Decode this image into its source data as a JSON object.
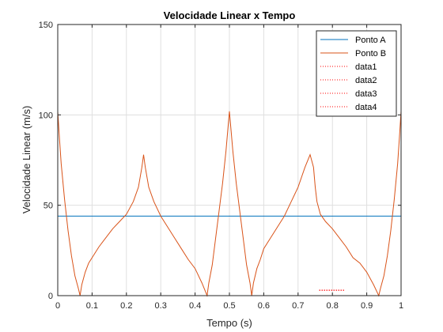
{
  "chart_data": {
    "type": "line",
    "title": "Velocidade Linear x Tempo",
    "xlabel": "Tempo (s)",
    "ylabel": "Velocidade Linear (m/s)",
    "xlim": [
      0,
      1
    ],
    "ylim": [
      0,
      150
    ],
    "xticks": [
      0,
      0.1,
      0.2,
      0.3,
      0.4,
      0.5,
      0.6,
      0.7,
      0.8,
      0.9,
      1
    ],
    "xtick_labels": [
      "0",
      "0.1",
      "0.2",
      "0.3",
      "0.4",
      "0.5",
      "0.6",
      "0.7",
      "0.8",
      "0.9",
      "1"
    ],
    "yticks": [
      0,
      50,
      100,
      150
    ],
    "ytick_labels": [
      "0",
      "50",
      "100",
      "150"
    ],
    "grid": true,
    "legend_position": "top-right",
    "series": [
      {
        "name": "Ponto A",
        "color": "#0072BD",
        "style": "solid",
        "x": [
          0,
          1
        ],
        "y": [
          44,
          44
        ]
      },
      {
        "name": "Ponto B",
        "color": "#D95319",
        "style": "solid",
        "x": [
          0,
          0.005,
          0.01,
          0.02,
          0.03,
          0.04,
          0.05,
          0.06,
          0.065,
          0.07,
          0.08,
          0.09,
          0.1,
          0.12,
          0.14,
          0.16,
          0.18,
          0.2,
          0.22,
          0.235,
          0.245,
          0.25,
          0.255,
          0.265,
          0.28,
          0.3,
          0.32,
          0.34,
          0.36,
          0.38,
          0.4,
          0.42,
          0.435,
          0.44,
          0.45,
          0.46,
          0.47,
          0.48,
          0.49,
          0.495,
          0.5,
          0.505,
          0.51,
          0.52,
          0.53,
          0.54,
          0.55,
          0.56,
          0.565,
          0.57,
          0.58,
          0.59,
          0.6,
          0.62,
          0.64,
          0.66,
          0.68,
          0.7,
          0.72,
          0.735,
          0.745,
          0.75,
          0.755,
          0.765,
          0.78,
          0.8,
          0.82,
          0.84,
          0.86,
          0.88,
          0.9,
          0.92,
          0.935,
          0.94,
          0.95,
          0.96,
          0.97,
          0.98,
          0.99,
          0.995,
          1
        ],
        "y": [
          102,
          87,
          73,
          53,
          36,
          22,
          11,
          4,
          0,
          6,
          13,
          18,
          21,
          27,
          32,
          37,
          41,
          45,
          52,
          60,
          71,
          78,
          71,
          60,
          52,
          44,
          38,
          32,
          26,
          20,
          15,
          7,
          0,
          7,
          17,
          32,
          47,
          62,
          80,
          91,
          102,
          91,
          80,
          62,
          47,
          32,
          17,
          7,
          0,
          7,
          15,
          20,
          26,
          32,
          38,
          44,
          52,
          60,
          71,
          78,
          71,
          60,
          52,
          45,
          41,
          37,
          32,
          27,
          21,
          18,
          13,
          6,
          0,
          4,
          11,
          22,
          36,
          53,
          73,
          87,
          102
        ]
      },
      {
        "name": "data1",
        "color": "#FF0000",
        "style": "dotted",
        "x": [
          0.762,
          0.835
        ],
        "y": [
          3,
          3
        ]
      },
      {
        "name": "data2",
        "color": "#FF0000",
        "style": "dotted",
        "x": [
          0.762,
          0.835
        ],
        "y": [
          3,
          3
        ]
      },
      {
        "name": "data3",
        "color": "#FF0000",
        "style": "dotted",
        "x": [
          0.762,
          0.835
        ],
        "y": [
          3,
          3
        ]
      },
      {
        "name": "data4",
        "color": "#FF0000",
        "style": "dotted",
        "x": [
          0.762,
          0.835
        ],
        "y": [
          3,
          3
        ]
      }
    ]
  }
}
